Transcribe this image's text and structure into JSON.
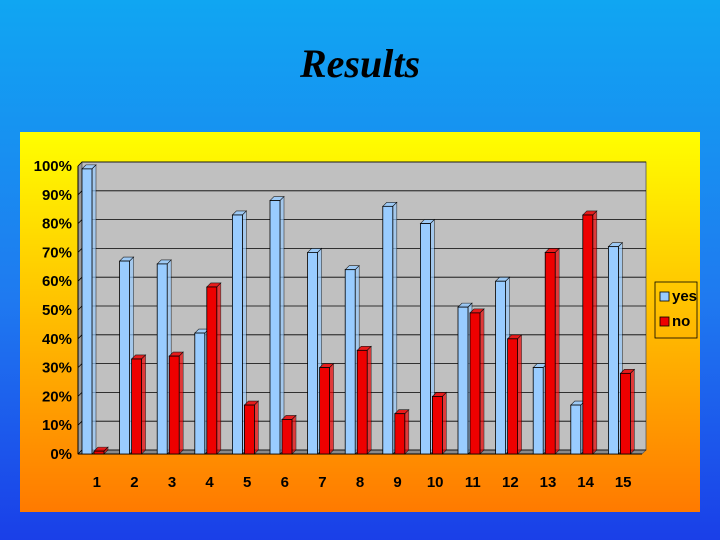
{
  "slide": {
    "title": "Results"
  },
  "colors": {
    "yes": "#99ccff",
    "no": "#ee0000",
    "plot_bg": "#c0c0c0"
  },
  "chart_data": {
    "type": "bar",
    "title": "",
    "xlabel": "",
    "ylabel": "",
    "categories": [
      "1",
      "2",
      "3",
      "4",
      "5",
      "6",
      "7",
      "8",
      "9",
      "10",
      "11",
      "12",
      "13",
      "14",
      "15"
    ],
    "series": [
      {
        "name": "yes",
        "values": [
          99,
          67,
          66,
          42,
          83,
          88,
          70,
          64,
          86,
          80,
          51,
          60,
          30,
          17,
          72
        ]
      },
      {
        "name": "no",
        "values": [
          1,
          33,
          34,
          58,
          17,
          12,
          30,
          36,
          14,
          20,
          49,
          40,
          70,
          83,
          28
        ]
      }
    ],
    "ylim": [
      0,
      100
    ],
    "yticks": [
      "0%",
      "10%",
      "20%",
      "30%",
      "40%",
      "50%",
      "60%",
      "70%",
      "80%",
      "90%",
      "100%"
    ],
    "grid": true,
    "legend": "right"
  }
}
